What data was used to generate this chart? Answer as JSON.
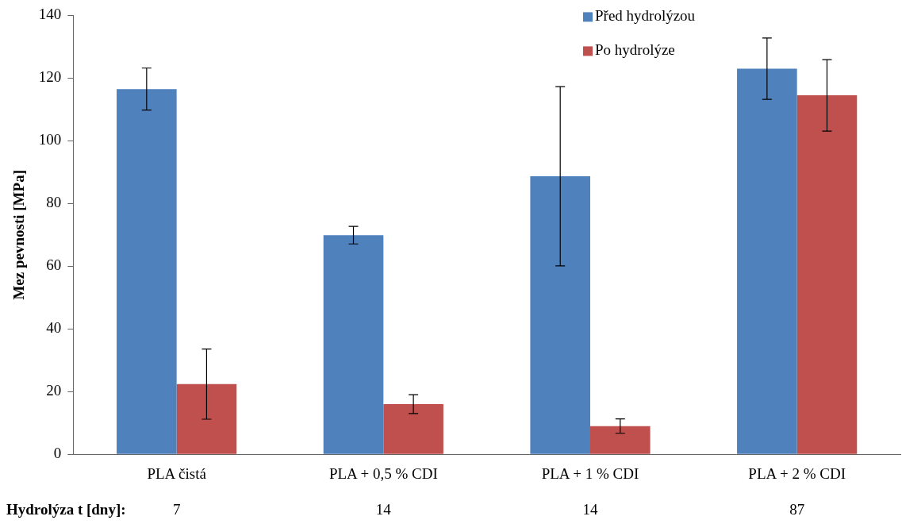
{
  "chart_data": {
    "type": "bar",
    "ylabel": "Mez pevnosti [MPa]",
    "categories": [
      "PLA čistá",
      "PLA + 0,5 % CDI",
      "PLA + 1 % CDI",
      "PLA + 2 % CDI"
    ],
    "series": [
      {
        "name": "Před hydrolýzou",
        "color": "#4f81bd",
        "values": [
          116.5,
          69.9,
          88.7,
          123.0
        ],
        "errors": [
          6.7,
          2.8,
          28.6,
          9.8
        ]
      },
      {
        "name": "Po hydrolýze",
        "color": "#c0504d",
        "values": [
          22.4,
          16.0,
          9.0,
          114.5
        ],
        "errors": [
          11.2,
          3.0,
          2.3,
          11.4
        ]
      }
    ],
    "ylim": [
      0,
      140
    ],
    "yticks": [
      0,
      20,
      40,
      60,
      80,
      100,
      120,
      140
    ],
    "grid": false,
    "legend": "top right",
    "annotations": [
      "Hydrolýza t [dny]:",
      "7",
      "14",
      "14",
      "87"
    ]
  }
}
